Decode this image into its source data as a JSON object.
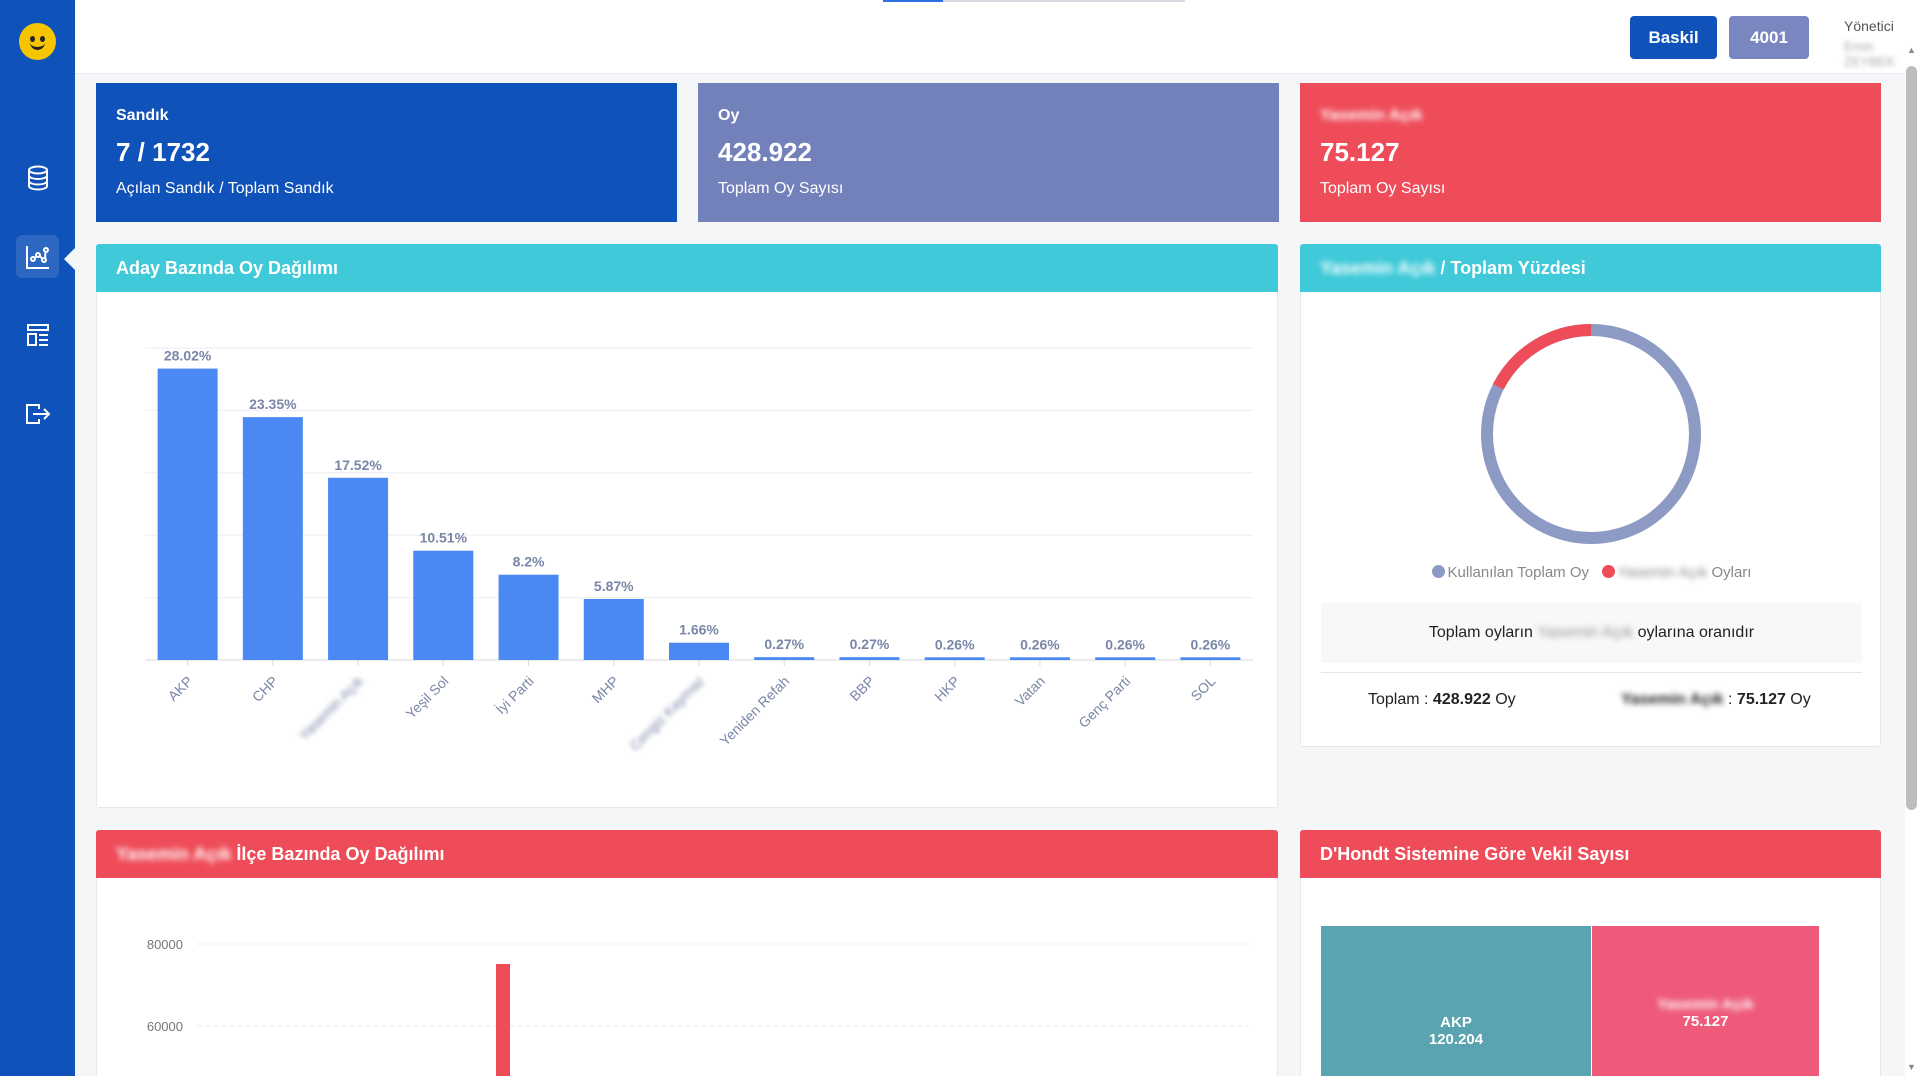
{
  "header": {
    "baskil_label": "Baskil",
    "number_label": "4001",
    "user_role": "Yönetici",
    "user_name": "Emin ZEYBEK"
  },
  "stats": [
    {
      "label": "Sandık",
      "value": "7 / 1732",
      "desc": "Açılan Sandık / Toplam Sandık"
    },
    {
      "label": "Oy",
      "value": "428.922",
      "desc": "Toplam Oy Sayısı"
    },
    {
      "label": "Yasemin Açık",
      "value": "75.127",
      "desc": "Toplam Oy Sayısı"
    }
  ],
  "panel_bar": {
    "title": "Aday Bazında Oy Dağılımı"
  },
  "panel_donut": {
    "title_blurred": "Yasemin Açık",
    "title_rest": " / Toplam Yüzdesi",
    "legend_total": "Kullanılan Toplam Oy",
    "legend_candidate_name": "Yasemin Açık",
    "legend_candidate_suffix": " Oyları",
    "ratio_prefix": "Toplam oyların ",
    "ratio_name": "Yasemin Açık",
    "ratio_suffix": " oylarına oranıdır",
    "total_label": "Toplam : ",
    "total_value": "428.922",
    "total_unit": " Oy",
    "candidate_label": "Yasemin Açık",
    "candidate_sep": " : ",
    "candidate_value": "75.127",
    "candidate_unit": " Oy"
  },
  "panel_district": {
    "title_blurred": "Yasemin Açık",
    "title_rest": " İlçe Bazında Oy Dağılımı"
  },
  "panel_dhondt": {
    "title": "D'Hondt Sistemine Göre Vekil Sayısı"
  },
  "treemap": [
    {
      "name": "AKP",
      "value": "120.204",
      "color": "#5aa3b0"
    },
    {
      "name": "Yasemin Açık",
      "value": "75.127",
      "color": "#ef5a7a"
    }
  ],
  "colors": {
    "primary": "#0f52ba",
    "purple": "#7381bb",
    "red": "#ef4c59",
    "teal": "#3fc9d9",
    "bar": "#4a89f3"
  },
  "chart_data": [
    {
      "type": "bar",
      "title": "Aday Bazında Oy Dağılımı",
      "categories": [
        "AKP",
        "CHP",
        "Yasemin Açık",
        "Yeşil Sol",
        "İyi Parti",
        "MHP",
        "Cengiz Kaymaz",
        "Yeniden Refah",
        "BBP",
        "HKP",
        "Vatan",
        "Genç Parti",
        "SOL"
      ],
      "blurred_categories": [
        2,
        6
      ],
      "values": [
        28.02,
        23.35,
        17.52,
        10.51,
        8.2,
        5.87,
        1.66,
        0.27,
        0.27,
        0.26,
        0.26,
        0.26,
        0.26
      ],
      "value_labels": [
        "28.02%",
        "23.35%",
        "17.52%",
        "10.51%",
        "8.2%",
        "5.87%",
        "1.66%",
        "0.27%",
        "0.27%",
        "0.26%",
        "0.26%",
        "0.26%",
        "0.26%"
      ],
      "ylim": [
        0,
        30
      ],
      "grid": true
    },
    {
      "type": "pie",
      "title": "Yasemin Açık / Toplam Yüzdesi",
      "series": [
        {
          "name": "Kullanılan Toplam Oy",
          "value": 428922,
          "color": "#8c9ac4"
        },
        {
          "name": "Yasemin Açık Oyları",
          "value": 75127,
          "color": "#ef4c59"
        }
      ]
    },
    {
      "type": "bar",
      "title": "Yasemin Açık İlçe Bazında Oy Dağılımı",
      "yticks": [
        "80000",
        "60000"
      ],
      "ylim": [
        40000,
        80000
      ],
      "values": [
        75127
      ],
      "grid": true
    }
  ]
}
